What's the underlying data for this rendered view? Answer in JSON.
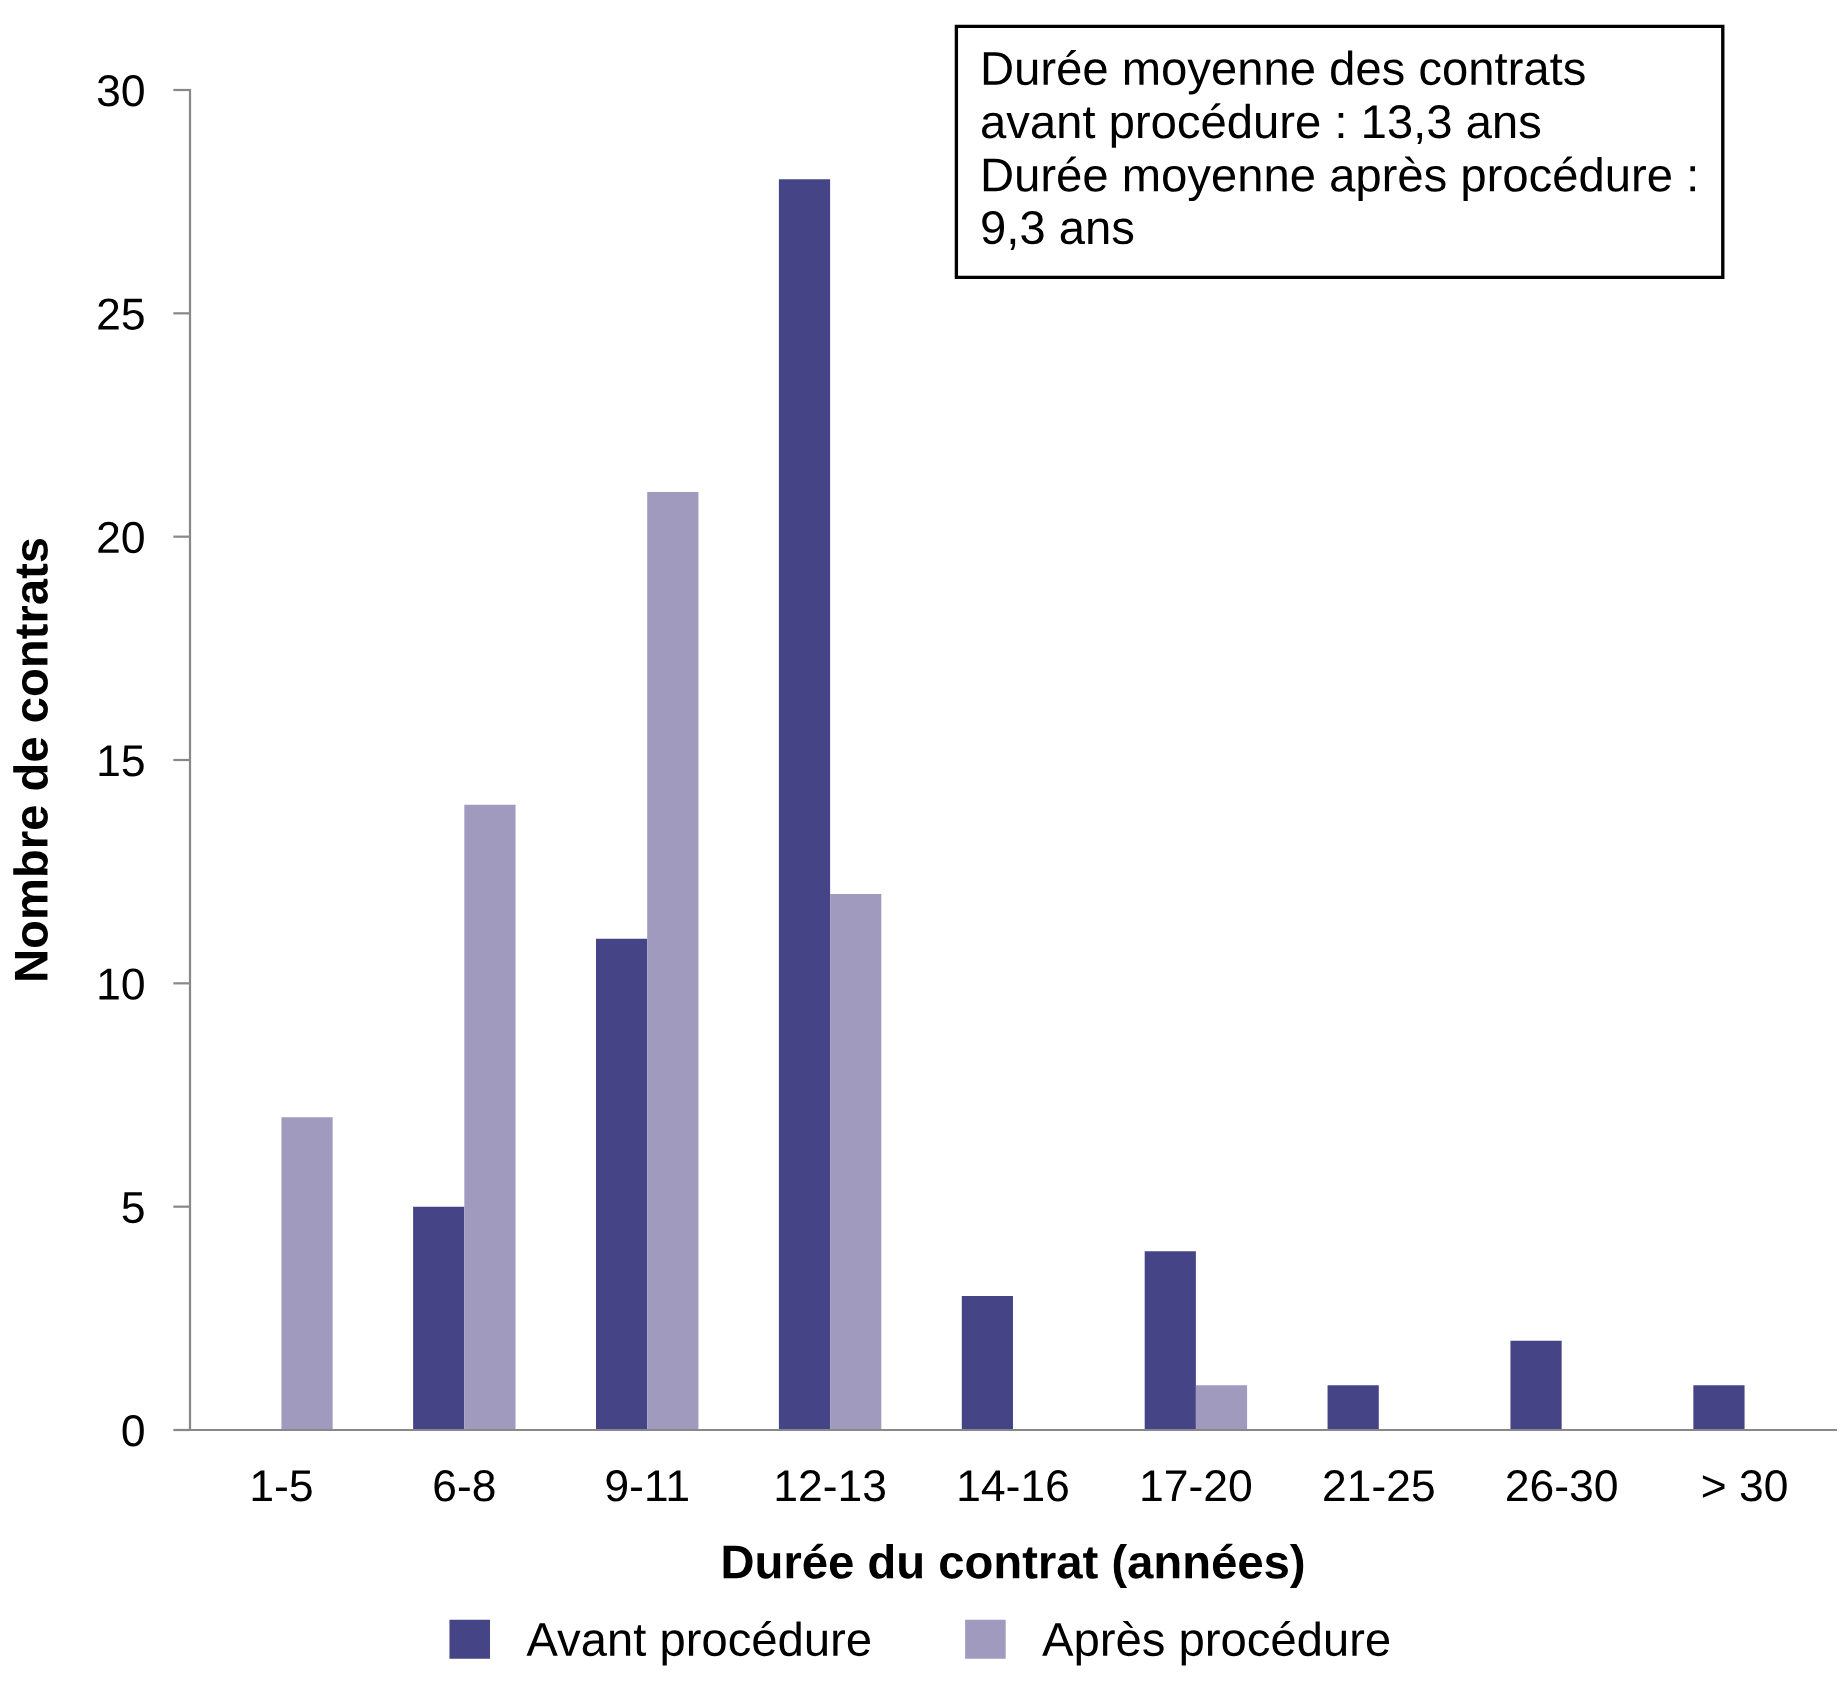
{
  "chart_data": {
    "type": "bar",
    "xlabel": "Durée du contrat (années)",
    "ylabel": "Nombre de contrats",
    "categories": [
      "1-5",
      "6-8",
      "9-11",
      "12-13",
      "14-16",
      "17-20",
      "21-25",
      "26-30",
      "> 30"
    ],
    "series": [
      {
        "name": "Avant procédure",
        "color": "#444486",
        "values": [
          0,
          5,
          11,
          28,
          3,
          4,
          1,
          2,
          1
        ]
      },
      {
        "name": "Après procédure",
        "color": "#a19abf",
        "values": [
          7,
          14,
          21,
          12,
          0,
          1,
          0,
          0,
          0
        ]
      }
    ],
    "ylim": [
      0,
      30
    ],
    "yticks": [
      0,
      5,
      10,
      15,
      20,
      25,
      30
    ],
    "grid": false,
    "legend": "bottom",
    "annotations": [
      "Durée moyenne des contrats\navant procédure : 13,3 ans\nDurée moyenne après procédure :\n9,3 ans"
    ]
  }
}
